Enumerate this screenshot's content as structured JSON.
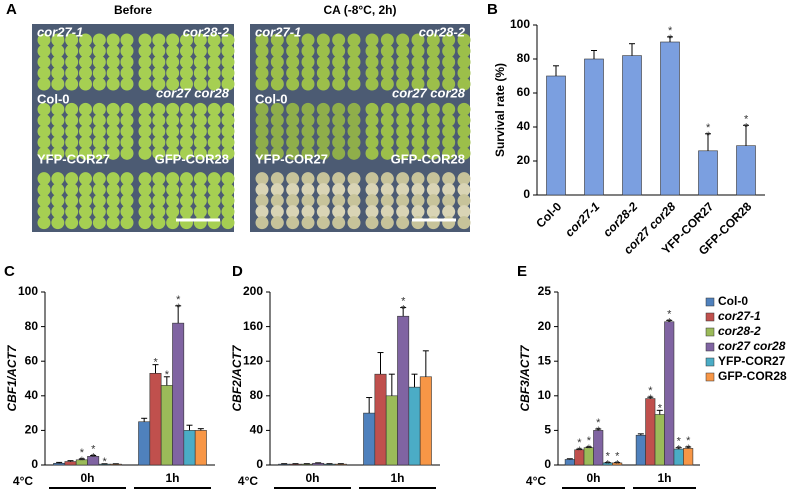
{
  "photos": {
    "panel": "A",
    "panels": [
      {
        "title": "Before",
        "labels": [
          "cor27-1",
          "cor28-2",
          "Col-0",
          "cor27 cor28",
          "YFP-COR27",
          "GFP-COR28"
        ]
      },
      {
        "title": "CA (-8°C, 2h)",
        "labels": [
          "cor27-1",
          "cor28-2",
          "Col-0",
          "cor27 cor28",
          "YFP-COR27",
          "GFP-COR28"
        ]
      }
    ]
  },
  "chart_data": [
    {
      "type": "bar",
      "panel": "B",
      "ylabel": "Survival rate (%)",
      "categories": [
        "Col-0",
        "cor27-1",
        "cor28-2",
        "cor27 cor28",
        "YFP-COR27",
        "GFP-COR28"
      ],
      "values": [
        70,
        80,
        82,
        90,
        26,
        29
      ],
      "errors": [
        6,
        5,
        7,
        3,
        10,
        12
      ],
      "significance": [
        null,
        null,
        null,
        "**",
        "**",
        "**"
      ],
      "color": "#7b9fe0",
      "ylim": [
        0,
        100
      ],
      "yticks": [
        0,
        20,
        40,
        60,
        80,
        100
      ]
    },
    {
      "type": "grouped_bar",
      "panel": "C",
      "ylabel": "CBF1/ACT7",
      "xlabel": "4°C",
      "categories": [
        "0h",
        "1h"
      ],
      "series": [
        {
          "color": "#4f81bd",
          "values": [
            1,
            25
          ],
          "errors": [
            0.5,
            2
          ],
          "significance": [
            null,
            null
          ]
        },
        {
          "color": "#c0504d",
          "values": [
            2,
            53
          ],
          "errors": [
            0.5,
            5
          ],
          "significance": [
            null,
            "*"
          ]
        },
        {
          "color": "#9bbb59",
          "values": [
            3,
            46
          ],
          "errors": [
            0.5,
            5
          ],
          "significance": [
            "**",
            "*"
          ]
        },
        {
          "color": "#8064a2",
          "values": [
            5,
            82
          ],
          "errors": [
            0.5,
            10
          ],
          "significance": [
            "**",
            "**"
          ]
        },
        {
          "color": "#4bacc6",
          "values": [
            0.5,
            20
          ],
          "errors": [
            0.2,
            3
          ],
          "significance": [
            "*",
            null
          ]
        },
        {
          "color": "#f79646",
          "values": [
            0.5,
            20
          ],
          "errors": [
            0.2,
            1
          ],
          "significance": [
            null,
            null
          ]
        }
      ],
      "ylim": [
        0,
        100
      ],
      "yticks": [
        0,
        20,
        40,
        60,
        80,
        100
      ],
      "legend": false
    },
    {
      "type": "grouped_bar",
      "panel": "D",
      "ylabel": "CBF2/ACT7",
      "xlabel": "4°C",
      "categories": [
        "0h",
        "1h"
      ],
      "series": [
        {
          "color": "#4f81bd",
          "values": [
            1,
            60
          ],
          "errors": [
            0.5,
            18
          ],
          "significance": [
            null,
            null
          ]
        },
        {
          "color": "#c0504d",
          "values": [
            1,
            105
          ],
          "errors": [
            0.5,
            25
          ],
          "significance": [
            null,
            null
          ]
        },
        {
          "color": "#9bbb59",
          "values": [
            1,
            80
          ],
          "errors": [
            0.5,
            25
          ],
          "significance": [
            null,
            null
          ]
        },
        {
          "color": "#8064a2",
          "values": [
            2,
            172
          ],
          "errors": [
            0.5,
            10
          ],
          "significance": [
            null,
            "**"
          ]
        },
        {
          "color": "#4bacc6",
          "values": [
            1,
            90
          ],
          "errors": [
            0.5,
            15
          ],
          "significance": [
            null,
            null
          ]
        },
        {
          "color": "#f79646",
          "values": [
            1,
            102
          ],
          "errors": [
            0.5,
            30
          ],
          "significance": [
            null,
            null
          ]
        }
      ],
      "ylim": [
        0,
        200
      ],
      "yticks": [
        0,
        40,
        80,
        120,
        160,
        200
      ],
      "legend": false
    },
    {
      "type": "grouped_bar",
      "panel": "E",
      "ylabel": "CBF3/ACT7",
      "xlabel": "4°C",
      "categories": [
        "0h",
        "1h"
      ],
      "series": [
        {
          "name": "Col-0",
          "color": "#4f81bd",
          "values": [
            0.8,
            4.3
          ],
          "errors": [
            0.1,
            0.2
          ],
          "significance": [
            null,
            null
          ]
        },
        {
          "name": "cor27-1",
          "color": "#c0504d",
          "values": [
            2.2,
            9.6
          ],
          "errors": [
            0.1,
            0.2
          ],
          "significance": [
            "**",
            "**"
          ]
        },
        {
          "name": "cor28-2",
          "color": "#9bbb59",
          "values": [
            2.5,
            7.3
          ],
          "errors": [
            0.1,
            0.6
          ],
          "significance": [
            "**",
            "*"
          ]
        },
        {
          "name": "cor27 cor28",
          "color": "#8064a2",
          "values": [
            5,
            20.7
          ],
          "errors": [
            0.2,
            0.2
          ],
          "significance": [
            "**",
            "**"
          ]
        },
        {
          "name": "YFP-COR27",
          "color": "#4bacc6",
          "values": [
            0.3,
            2.3
          ],
          "errors": [
            0.05,
            0.2
          ],
          "significance": [
            "**",
            "**"
          ]
        },
        {
          "name": "GFP-COR28",
          "color": "#f79646",
          "values": [
            0.3,
            2.4
          ],
          "errors": [
            0.05,
            0.2
          ],
          "significance": [
            "**",
            "**"
          ]
        }
      ],
      "ylim": [
        0,
        25
      ],
      "yticks": [
        0,
        5,
        10,
        15,
        20,
        25
      ],
      "legend": true
    }
  ]
}
